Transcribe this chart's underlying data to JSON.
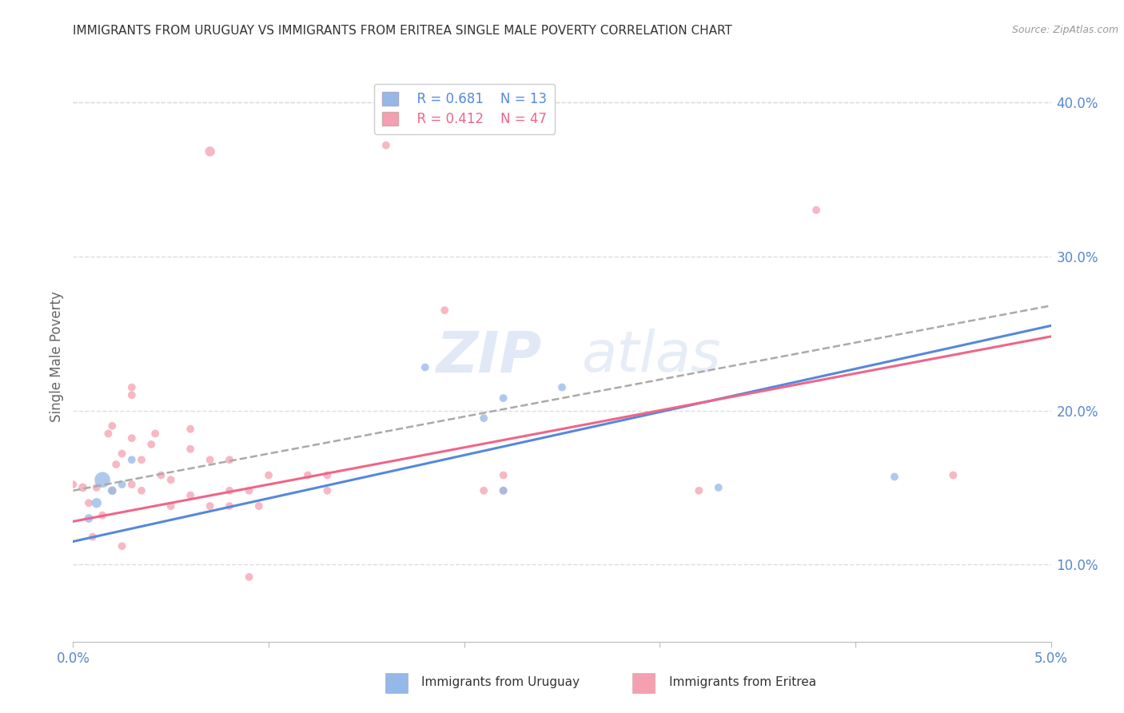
{
  "title": "IMMIGRANTS FROM URUGUAY VS IMMIGRANTS FROM ERITREA SINGLE MALE POVERTY CORRELATION CHART",
  "source": "Source: ZipAtlas.com",
  "ylabel": "Single Male Poverty",
  "xlim": [
    0.0,
    0.05
  ],
  "ylim": [
    0.05,
    0.42
  ],
  "yticks_right": [
    0.1,
    0.2,
    0.3,
    0.4
  ],
  "legend_r_uruguay": "R = 0.681",
  "legend_n_uruguay": "N = 13",
  "legend_r_eritrea": "R = 0.412",
  "legend_n_eritrea": "N = 47",
  "uruguay_color": "#94b8e8",
  "eritrea_color": "#f4a0b0",
  "uruguay_line_color": "#5588dd",
  "eritrea_line_color": "#ee6688",
  "dashed_line_color": "#aaaaaa",
  "watermark_color": "#c8d8ee",
  "background_color": "#ffffff",
  "grid_color": "#dddddd",
  "axis_label_color": "#5588cc",
  "title_color": "#333333",
  "uruguay_points": [
    [
      0.0015,
      0.155,
      200
    ],
    [
      0.0012,
      0.14,
      80
    ],
    [
      0.0008,
      0.13,
      60
    ],
    [
      0.002,
      0.148,
      60
    ],
    [
      0.0025,
      0.152,
      50
    ],
    [
      0.003,
      0.168,
      50
    ],
    [
      0.018,
      0.228,
      50
    ],
    [
      0.021,
      0.195,
      50
    ],
    [
      0.022,
      0.208,
      50
    ],
    [
      0.025,
      0.215,
      50
    ],
    [
      0.022,
      0.148,
      50
    ],
    [
      0.033,
      0.15,
      50
    ],
    [
      0.042,
      0.157,
      50
    ]
  ],
  "eritrea_points": [
    [
      0.0005,
      0.15,
      60
    ],
    [
      0.0008,
      0.14,
      50
    ],
    [
      0.001,
      0.118,
      50
    ],
    [
      0.0012,
      0.15,
      50
    ],
    [
      0.0015,
      0.132,
      50
    ],
    [
      0.0018,
      0.185,
      50
    ],
    [
      0.002,
      0.19,
      50
    ],
    [
      0.002,
      0.148,
      50
    ],
    [
      0.0022,
      0.165,
      50
    ],
    [
      0.0025,
      0.172,
      50
    ],
    [
      0.0025,
      0.112,
      50
    ],
    [
      0.003,
      0.152,
      50
    ],
    [
      0.003,
      0.182,
      50
    ],
    [
      0.003,
      0.21,
      50
    ],
    [
      0.003,
      0.215,
      50
    ],
    [
      0.0035,
      0.148,
      50
    ],
    [
      0.0035,
      0.168,
      50
    ],
    [
      0.004,
      0.178,
      50
    ],
    [
      0.0042,
      0.185,
      50
    ],
    [
      0.0045,
      0.158,
      50
    ],
    [
      0.005,
      0.138,
      50
    ],
    [
      0.005,
      0.155,
      50
    ],
    [
      0.006,
      0.145,
      50
    ],
    [
      0.006,
      0.175,
      50
    ],
    [
      0.006,
      0.188,
      50
    ],
    [
      0.007,
      0.138,
      50
    ],
    [
      0.007,
      0.168,
      50
    ],
    [
      0.007,
      0.368,
      80
    ],
    [
      0.008,
      0.138,
      50
    ],
    [
      0.008,
      0.148,
      50
    ],
    [
      0.008,
      0.168,
      50
    ],
    [
      0.009,
      0.092,
      50
    ],
    [
      0.009,
      0.148,
      50
    ],
    [
      0.0095,
      0.138,
      50
    ],
    [
      0.01,
      0.158,
      50
    ],
    [
      0.012,
      0.158,
      50
    ],
    [
      0.013,
      0.148,
      50
    ],
    [
      0.013,
      0.158,
      50
    ],
    [
      0.016,
      0.372,
      50
    ],
    [
      0.019,
      0.265,
      50
    ],
    [
      0.021,
      0.148,
      50
    ],
    [
      0.022,
      0.148,
      50
    ],
    [
      0.022,
      0.158,
      50
    ],
    [
      0.032,
      0.148,
      50
    ],
    [
      0.038,
      0.33,
      50
    ],
    [
      0.045,
      0.158,
      50
    ],
    [
      0.0,
      0.152,
      50
    ]
  ],
  "uruguay_line": {
    "x0": 0.0,
    "y0": 0.115,
    "x1": 0.05,
    "y1": 0.255
  },
  "eritrea_line": {
    "x0": 0.0,
    "y0": 0.128,
    "x1": 0.05,
    "y1": 0.248
  },
  "dashed_line": {
    "x0": 0.0,
    "y0": 0.148,
    "x1": 0.05,
    "y1": 0.268
  }
}
